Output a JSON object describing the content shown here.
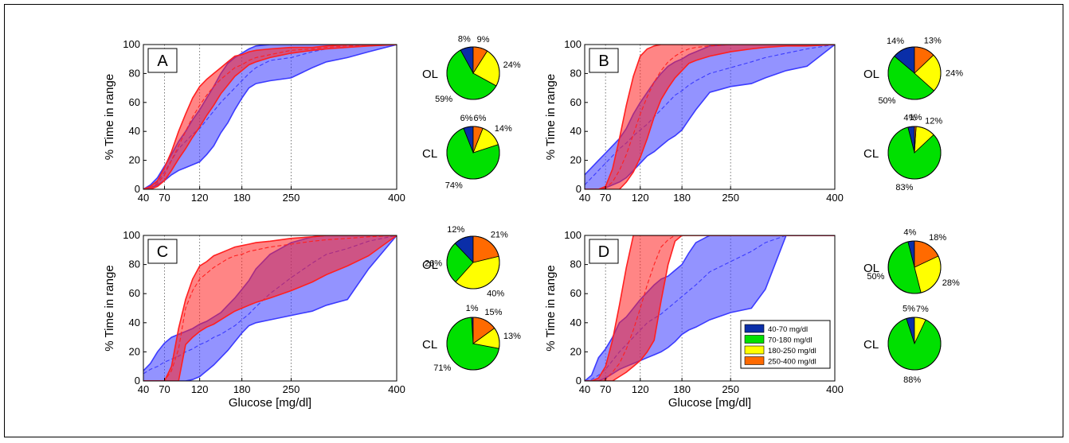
{
  "colors": {
    "ol_band": "#3b3bff",
    "cl_band": "#ff2020",
    "hypo": "#0a2ea8",
    "target": "#00e000",
    "hyper1": "#ffff00",
    "hyper2": "#ff6a00"
  },
  "legend": {
    "items": [
      {
        "label": "40-70 mg/dl",
        "color": "#0a2ea8"
      },
      {
        "label": "70-180 mg/dl",
        "color": "#00e000"
      },
      {
        "label": "180-250 mg/dl",
        "color": "#ffff00"
      },
      {
        "label": "250-400 mg/dl",
        "color": "#ff6a00"
      }
    ]
  },
  "chart_data": [
    {
      "type": "area",
      "panel": "A",
      "xlabel": "",
      "ylabel": "% Time in range",
      "xlim": [
        40,
        400
      ],
      "ylim": [
        0,
        100
      ],
      "xticks": [
        40,
        70,
        120,
        180,
        250,
        400
      ],
      "yticks": [
        0,
        20,
        40,
        60,
        80,
        100
      ],
      "series": [
        {
          "x": [
            40,
            50,
            60,
            70,
            80,
            90,
            100,
            110,
            120,
            130,
            140,
            150,
            160,
            170,
            180,
            190,
            200,
            220,
            250,
            280,
            300,
            330,
            360,
            400
          ],
          "lower": [
            0,
            1,
            3,
            6,
            10,
            13,
            15,
            17,
            19,
            24,
            30,
            39,
            46,
            55,
            63,
            70,
            73,
            75,
            77,
            84,
            88,
            91,
            95,
            100
          ],
          "mid": [
            0,
            2,
            5,
            12,
            20,
            28,
            33,
            38,
            42,
            48,
            54,
            60,
            65,
            70,
            75,
            80,
            84,
            89,
            91,
            95,
            97,
            98,
            99,
            100
          ],
          "upper": [
            0,
            3,
            8,
            16,
            24,
            33,
            40,
            48,
            55,
            63,
            71,
            80,
            87,
            91,
            94,
            97,
            99,
            100,
            100,
            100,
            100,
            100,
            100,
            100
          ]
        },
        {
          "x": [
            40,
            50,
            60,
            70,
            80,
            90,
            100,
            110,
            120,
            130,
            140,
            150,
            160,
            170,
            180,
            190,
            200,
            220,
            250,
            280,
            300,
            330,
            360,
            400
          ],
          "lower": [
            0,
            0,
            2,
            6,
            13,
            21,
            28,
            36,
            43,
            51,
            58,
            66,
            72,
            78,
            82,
            86,
            88,
            91,
            94,
            96,
            97,
            98,
            99,
            100
          ],
          "mid": [
            0,
            1,
            4,
            10,
            20,
            30,
            40,
            50,
            58,
            65,
            71,
            76,
            80,
            84,
            86,
            89,
            91,
            93,
            96,
            97,
            98,
            99,
            99,
            100
          ],
          "upper": [
            0,
            2,
            6,
            15,
            26,
            40,
            52,
            63,
            71,
            76,
            80,
            84,
            88,
            92,
            93,
            95,
            96,
            97,
            98,
            98,
            99,
            100,
            100,
            100
          ]
        }
      ],
      "pies": [
        {
          "label": "OL",
          "values": [
            8,
            59,
            24,
            9
          ],
          "labels": [
            "8%",
            "59%",
            "24%",
            "9%"
          ]
        },
        {
          "label": "CL",
          "values": [
            6,
            74,
            14,
            6
          ],
          "labels": [
            "6%",
            "74%",
            "14%",
            "6%"
          ]
        }
      ]
    },
    {
      "type": "area",
      "panel": "B",
      "xlabel": "",
      "ylabel": "% Time in range",
      "xlim": [
        40,
        400
      ],
      "ylim": [
        0,
        100
      ],
      "xticks": [
        40,
        70,
        120,
        180,
        250,
        400
      ],
      "yticks": [
        0,
        20,
        40,
        60,
        80,
        100
      ],
      "series": [
        {
          "x": [
            40,
            50,
            60,
            70,
            80,
            90,
            100,
            110,
            120,
            130,
            140,
            150,
            160,
            170,
            180,
            190,
            200,
            220,
            250,
            280,
            300,
            330,
            360,
            400
          ],
          "lower": [
            0,
            0,
            0,
            1,
            3,
            5,
            8,
            13,
            18,
            23,
            26,
            30,
            34,
            37,
            41,
            48,
            55,
            67,
            71,
            73,
            77,
            82,
            85,
            100
          ],
          "mid": [
            3,
            8,
            13,
            18,
            23,
            28,
            32,
            37,
            41,
            45,
            50,
            55,
            60,
            65,
            68,
            72,
            75,
            80,
            84,
            88,
            91,
            94,
            97,
            100
          ],
          "upper": [
            10,
            15,
            20,
            25,
            30,
            35,
            42,
            52,
            60,
            67,
            74,
            80,
            85,
            88,
            90,
            93,
            95,
            99,
            100,
            100,
            100,
            100,
            100,
            100
          ]
        },
        {
          "x": [
            40,
            50,
            60,
            70,
            80,
            90,
            100,
            110,
            120,
            130,
            140,
            150,
            160,
            170,
            180,
            190,
            200,
            220,
            250,
            280,
            300,
            330,
            360,
            400
          ],
          "lower": [
            0,
            0,
            0,
            0,
            0,
            0,
            5,
            12,
            22,
            35,
            50,
            62,
            70,
            77,
            82,
            87,
            89,
            92,
            95,
            97,
            98,
            99,
            99,
            100
          ],
          "mid": [
            0,
            0,
            0,
            1,
            5,
            13,
            24,
            38,
            52,
            64,
            74,
            82,
            88,
            92,
            95,
            97,
            98,
            99,
            100,
            100,
            100,
            100,
            100,
            100
          ],
          "upper": [
            0,
            0,
            0,
            2,
            14,
            35,
            58,
            78,
            92,
            97,
            99,
            100,
            100,
            100,
            100,
            100,
            100,
            100,
            100,
            100,
            100,
            100,
            100,
            100
          ]
        }
      ],
      "pies": [
        {
          "label": "OL",
          "values": [
            14,
            50,
            24,
            13
          ],
          "labels": [
            "14%",
            "50%",
            "24%",
            "13%"
          ]
        },
        {
          "label": "CL",
          "values": [
            4,
            83,
            12,
            1
          ],
          "labels": [
            "4%",
            "83%",
            "12%",
            "1%"
          ]
        }
      ]
    },
    {
      "type": "area",
      "panel": "C",
      "xlabel": "Glucose [mg/dl]",
      "ylabel": "% Time in range",
      "xlim": [
        40,
        400
      ],
      "ylim": [
        0,
        100
      ],
      "xticks": [
        40,
        70,
        120,
        180,
        250,
        400
      ],
      "yticks": [
        0,
        20,
        40,
        60,
        80,
        100
      ],
      "series": [
        {
          "x": [
            40,
            50,
            60,
            70,
            80,
            90,
            100,
            110,
            120,
            130,
            140,
            150,
            160,
            170,
            180,
            190,
            200,
            220,
            250,
            280,
            300,
            330,
            360,
            400
          ],
          "lower": [
            0,
            0,
            0,
            0,
            0,
            0,
            0,
            1,
            3,
            7,
            11,
            16,
            21,
            27,
            33,
            38,
            40,
            42,
            45,
            48,
            52,
            56,
            77,
            100
          ],
          "mid": [
            5,
            8,
            10,
            13,
            15,
            17,
            20,
            22,
            25,
            27,
            30,
            32,
            35,
            38,
            42,
            46,
            51,
            60,
            71,
            81,
            87,
            91,
            96,
            100
          ],
          "upper": [
            7,
            12,
            20,
            26,
            30,
            32,
            34,
            36,
            39,
            41,
            44,
            47,
            52,
            57,
            63,
            69,
            77,
            87,
            95,
            99,
            100,
            100,
            100,
            100
          ]
        },
        {
          "x": [
            40,
            50,
            60,
            70,
            80,
            90,
            100,
            110,
            120,
            130,
            140,
            150,
            160,
            170,
            180,
            190,
            200,
            220,
            250,
            280,
            300,
            330,
            360,
            400
          ],
          "lower": [
            0,
            0,
            0,
            0,
            0,
            0,
            25,
            30,
            34,
            37,
            39,
            42,
            45,
            48,
            50,
            52,
            54,
            57,
            62,
            68,
            73,
            79,
            86,
            100
          ],
          "mid": [
            0,
            0,
            0,
            0,
            7,
            22,
            50,
            62,
            70,
            74,
            78,
            81,
            84,
            86,
            87,
            89,
            90,
            92,
            94,
            96,
            97,
            98,
            99,
            100
          ],
          "upper": [
            0,
            0,
            0,
            0,
            10,
            36,
            56,
            70,
            79,
            82,
            86,
            88,
            90,
            92,
            93,
            94,
            95,
            96,
            98,
            99,
            100,
            100,
            100,
            100
          ]
        }
      ],
      "pies": [
        {
          "label": "OL",
          "values": [
            12,
            26,
            40,
            21
          ],
          "labels": [
            "12%",
            "26%",
            "40%",
            "21%"
          ]
        },
        {
          "label": "CL",
          "values": [
            1,
            71,
            13,
            15
          ],
          "labels": [
            "1%",
            "71%",
            "13%",
            "15%"
          ]
        }
      ]
    },
    {
      "type": "area",
      "panel": "D",
      "xlabel": "Glucose [mg/dl]",
      "ylabel": "% Time in range",
      "xlim": [
        40,
        400
      ],
      "ylim": [
        0,
        100
      ],
      "xticks": [
        40,
        70,
        120,
        180,
        250,
        400
      ],
      "yticks": [
        0,
        20,
        40,
        60,
        80,
        100
      ],
      "series": [
        {
          "x": [
            40,
            50,
            60,
            70,
            80,
            90,
            100,
            110,
            120,
            130,
            140,
            150,
            160,
            170,
            180,
            190,
            200,
            220,
            250,
            280,
            300,
            330,
            360,
            400
          ],
          "lower": [
            0,
            0,
            0,
            2,
            5,
            8,
            10,
            12,
            14,
            16,
            18,
            20,
            23,
            27,
            32,
            35,
            37,
            42,
            47,
            50,
            63,
            100,
            100,
            100
          ],
          "mid": [
            0,
            1,
            4,
            8,
            14,
            20,
            25,
            30,
            35,
            40,
            43,
            46,
            50,
            54,
            58,
            62,
            66,
            75,
            82,
            89,
            95,
            100,
            100,
            100
          ],
          "upper": [
            0,
            4,
            16,
            22,
            30,
            40,
            44,
            50,
            56,
            61,
            66,
            70,
            72,
            76,
            80,
            88,
            95,
            100,
            100,
            100,
            100,
            100,
            100,
            100
          ]
        },
        {
          "x": [
            40,
            50,
            60,
            70,
            80,
            90,
            100,
            110,
            120,
            130,
            140,
            150,
            160,
            170,
            180,
            190,
            200,
            220,
            250,
            280,
            300,
            330,
            360,
            400
          ],
          "lower": [
            0,
            0,
            0,
            0,
            0,
            3,
            6,
            10,
            14,
            20,
            28,
            55,
            80,
            96,
            100,
            100,
            100,
            100,
            100,
            100,
            100,
            100,
            100,
            100
          ],
          "mid": [
            0,
            0,
            0,
            1,
            6,
            12,
            22,
            35,
            50,
            66,
            80,
            92,
            97,
            100,
            100,
            100,
            100,
            100,
            100,
            100,
            100,
            100,
            100,
            100
          ],
          "upper": [
            0,
            0,
            2,
            10,
            28,
            52,
            78,
            100,
            100,
            100,
            100,
            100,
            100,
            100,
            100,
            100,
            100,
            100,
            100,
            100,
            100,
            100,
            100,
            100
          ]
        }
      ],
      "pies": [
        {
          "label": "OL",
          "values": [
            4,
            50,
            28,
            18
          ],
          "labels": [
            "4%",
            "50%",
            "28%",
            "18%"
          ]
        },
        {
          "label": "CL",
          "values": [
            5,
            88,
            7,
            0
          ],
          "labels": [
            "5%",
            "88%",
            "7%",
            ""
          ]
        }
      ]
    }
  ]
}
